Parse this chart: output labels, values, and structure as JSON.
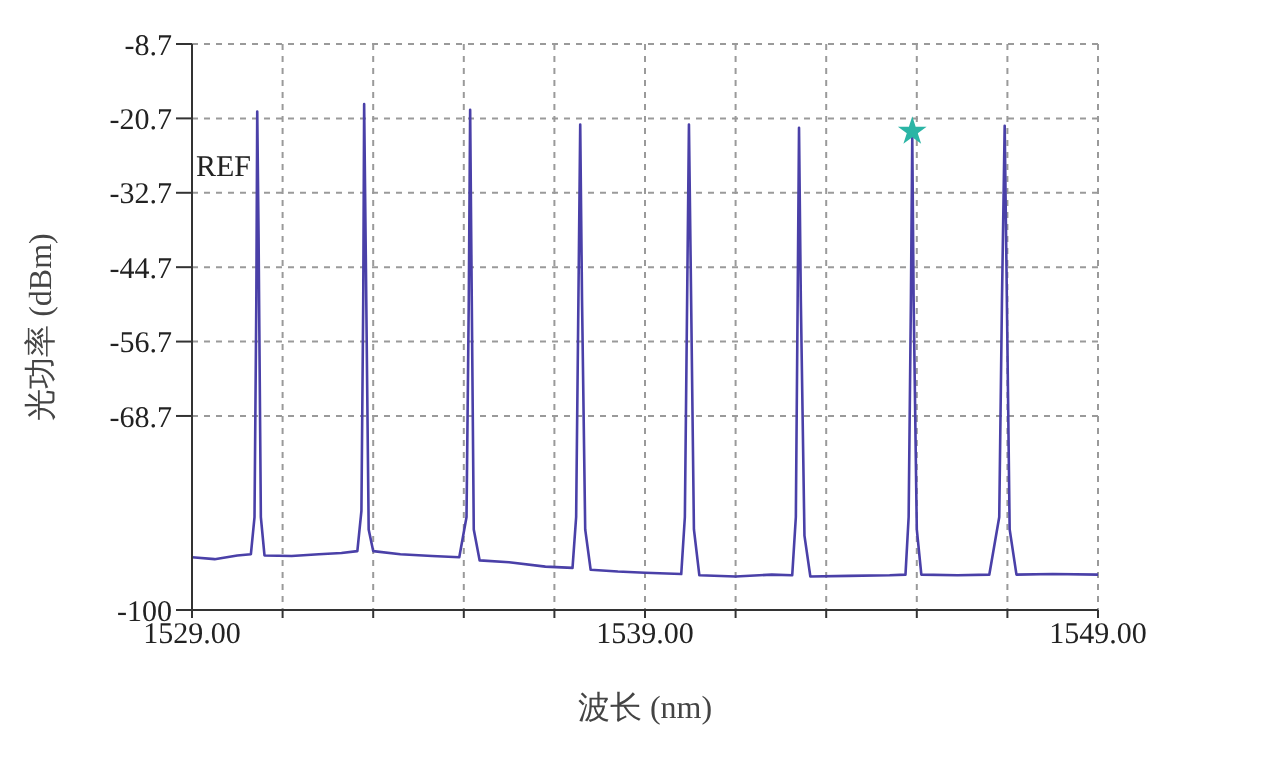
{
  "chart_data": {
    "type": "line",
    "xlabel": "波长 (nm)",
    "ylabel": "光功率 (dBm)",
    "annotations": [
      "REF"
    ],
    "xlim": [
      1529,
      1549
    ],
    "ylim": [
      -100,
      -8.7
    ],
    "xticks": [
      {
        "value": 1529,
        "label": "1529.00"
      },
      {
        "value": 1531,
        "label": null
      },
      {
        "value": 1533,
        "label": null
      },
      {
        "value": 1535,
        "label": null
      },
      {
        "value": 1537,
        "label": null
      },
      {
        "value": 1539,
        "label": "1539.00"
      },
      {
        "value": 1541,
        "label": null
      },
      {
        "value": 1543,
        "label": null
      },
      {
        "value": 1545,
        "label": null
      },
      {
        "value": 1547,
        "label": null
      },
      {
        "value": 1549,
        "label": "1549.00"
      }
    ],
    "yticks": [
      -8.7,
      -20.7,
      -32.7,
      -44.7,
      -56.7,
      -68.7,
      -100
    ],
    "grid": true,
    "line_style": "solid",
    "series": [
      {
        "color": "#4a40a8",
        "marker": "none",
        "x": [
          1529.0,
          1529.5,
          1530.0,
          1530.3,
          1530.38,
          1530.42,
          1530.44,
          1530.47,
          1530.52,
          1530.6,
          1531.2,
          1531.8,
          1532.3,
          1532.65,
          1532.74,
          1532.78,
          1532.8,
          1532.84,
          1532.9,
          1533.0,
          1533.6,
          1534.3,
          1534.9,
          1535.06,
          1535.11,
          1535.14,
          1535.17,
          1535.22,
          1535.35,
          1536.0,
          1536.8,
          1537.4,
          1537.48,
          1537.53,
          1537.57,
          1537.61,
          1537.68,
          1537.8,
          1538.4,
          1539.0,
          1539.8,
          1539.88,
          1539.93,
          1539.97,
          1540.01,
          1540.08,
          1540.2,
          1541.0,
          1541.8,
          1542.25,
          1542.33,
          1542.37,
          1542.4,
          1542.44,
          1542.52,
          1542.65,
          1543.5,
          1544.4,
          1544.75,
          1544.82,
          1544.87,
          1544.9,
          1544.93,
          1545.0,
          1545.1,
          1545.9,
          1546.6,
          1546.82,
          1546.88,
          1546.94,
          1546.98,
          1547.05,
          1547.2,
          1548.0,
          1549.0
        ],
        "values": [
          -91.5,
          -91.8,
          -91.2,
          -91.0,
          -85,
          -50,
          -19.6,
          -40,
          -85,
          -91.2,
          -91.3,
          -91.0,
          -90.8,
          -90.5,
          -84,
          -50,
          -18.4,
          -45,
          -87,
          -90.5,
          -91.0,
          -91.3,
          -91.5,
          -85,
          -50,
          -19.3,
          -45,
          -87,
          -92.0,
          -92.3,
          -93.0,
          -93.2,
          -85,
          -50,
          -21.7,
          -50,
          -87,
          -93.5,
          -93.8,
          -94.0,
          -94.2,
          -85,
          -50,
          -21.7,
          -45,
          -87,
          -94.4,
          -94.6,
          -94.3,
          -94.4,
          -85,
          -50,
          -22.2,
          -50,
          -88,
          -94.6,
          -94.5,
          -94.4,
          -94.3,
          -85,
          -50,
          -23.7,
          -50,
          -87,
          -94.3,
          -94.4,
          -94.3,
          -85,
          -50,
          -21.9,
          -45,
          -87,
          -94.3,
          -94.2,
          -94.3
        ]
      },
      {
        "type": "scatter",
        "color": "#2bb5a5",
        "marker": "star",
        "x": [
          1544.9
        ],
        "values": [
          -22.8
        ]
      }
    ]
  }
}
